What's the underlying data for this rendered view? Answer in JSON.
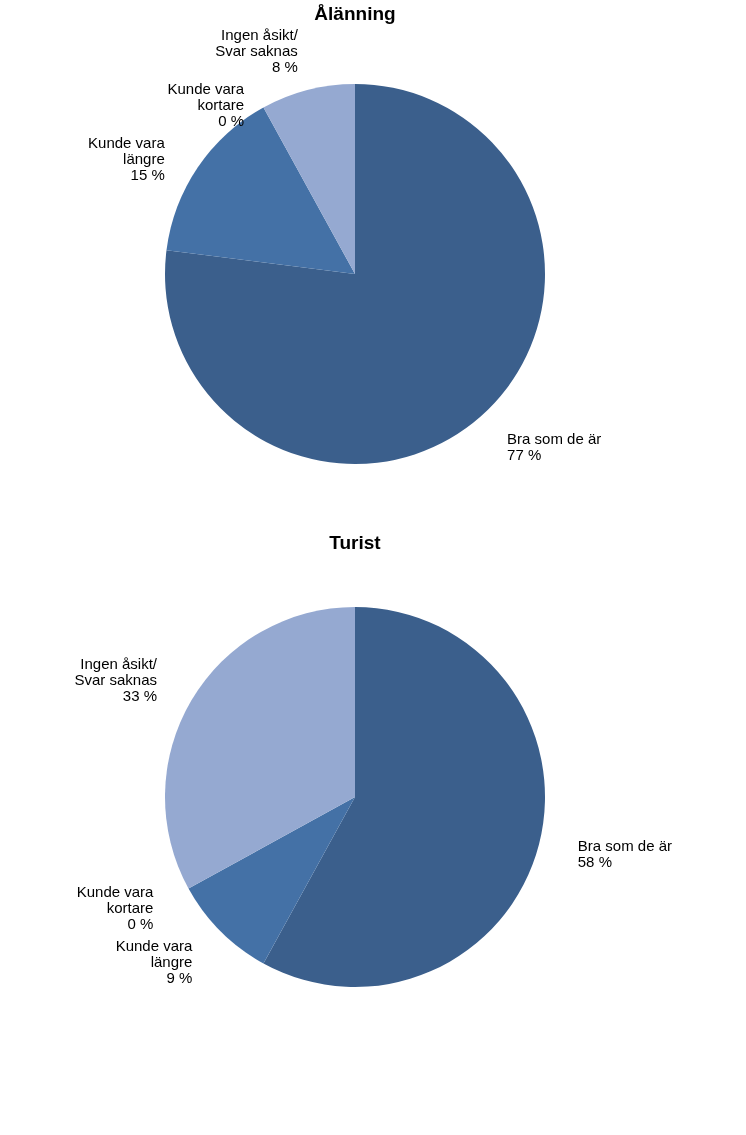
{
  "chart_data": [
    {
      "type": "pie",
      "title": "Ålänning",
      "categories": [
        "Bra som de är",
        "Kunde vara längre",
        "Kunde vara kortare",
        "Ingen åsikt/ Svar saknas"
      ],
      "values": [
        77,
        15,
        0,
        8
      ],
      "value_labels": [
        "77 %",
        "15 %",
        "0 %",
        "8 %"
      ],
      "colors": [
        "#3b5f8c",
        "#4471a6",
        "#6f8dc0",
        "#95a9d1"
      ],
      "legend": false
    },
    {
      "type": "pie",
      "title": "Turist",
      "categories": [
        "Bra som de är",
        "Kunde vara längre",
        "Kunde vara kortare",
        "Ingen åsikt/ Svar saknas"
      ],
      "values": [
        58,
        9,
        0,
        33
      ],
      "value_labels": [
        "58 %",
        "9 %",
        "0 %",
        "33 %"
      ],
      "colors": [
        "#3b5f8c",
        "#4471a6",
        "#6f8dc0",
        "#95a9d1"
      ],
      "legend": false
    }
  ]
}
